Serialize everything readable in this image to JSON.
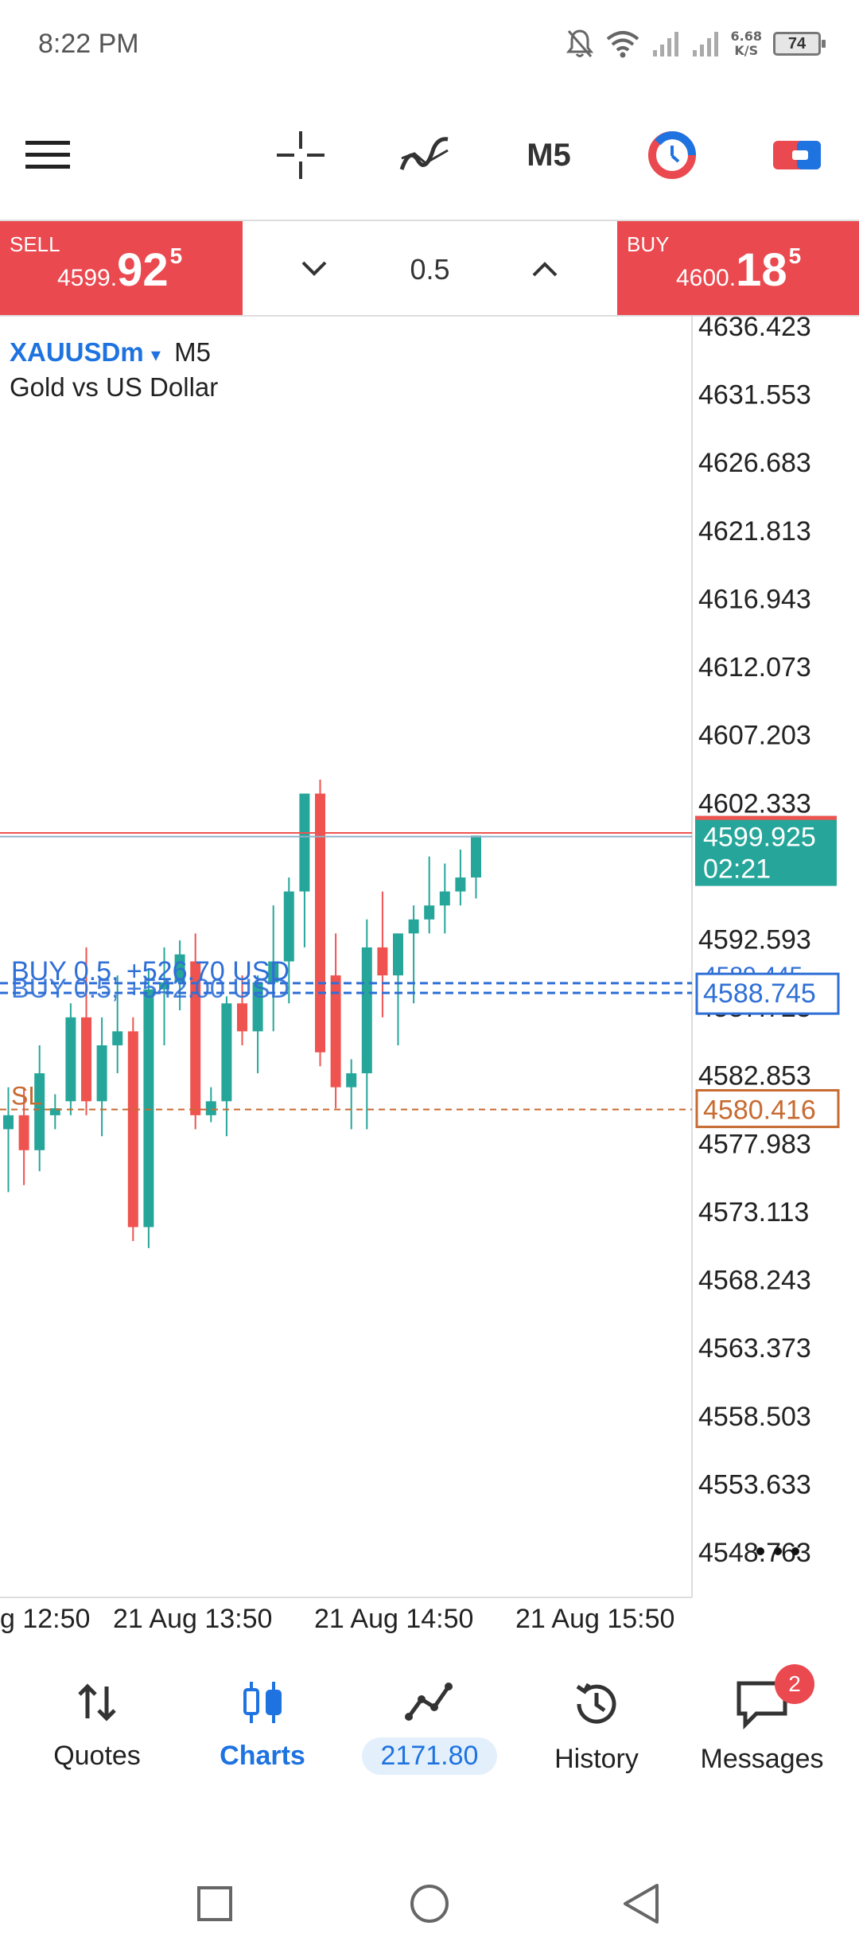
{
  "status_bar": {
    "time": "8:22 PM",
    "net_speed_value": "6.68",
    "net_speed_unit": "K/S",
    "battery": "74"
  },
  "toolbar": {
    "timeframe": "M5"
  },
  "trade": {
    "sell_label": "SELL",
    "sell_price_main": "4599.",
    "sell_price_big": "92",
    "sell_price_sup": "5",
    "buy_label": "BUY",
    "buy_price_main": "4600.",
    "buy_price_big": "18",
    "buy_price_sup": "5",
    "volume": "0.5"
  },
  "chart": {
    "symbol": "XAUUSDm",
    "dropdown_glyph": "▾",
    "timeframe": "M5",
    "description": "Gold vs US Dollar",
    "price_axis": [
      "4636.423",
      "4631.553",
      "4626.683",
      "4621.813",
      "4616.943",
      "4612.073",
      "4607.203",
      "4602.333",
      "4597.463",
      "4592.593",
      "4587.723",
      "4582.853",
      "4577.983",
      "4573.113",
      "4568.243",
      "4563.373",
      "4558.503",
      "4553.633",
      "4548.763"
    ],
    "time_axis": [
      "g 12:50",
      "21 Aug 13:50",
      "21 Aug 14:50",
      "21 Aug 15:50"
    ],
    "current_price": "4599.925",
    "countdown": "02:21",
    "position_text_1": "BUY 0.5, +526.70 USD",
    "position_text_2": "BUY 0.5, +542.00 USD",
    "position_tag": "4588.745",
    "position_tag_behind": "4589.445",
    "sl_label": "SL",
    "sl_tag": "4580.416"
  },
  "chart_data": {
    "type": "candlestick",
    "y_range": [
      4546.0,
      4638.0
    ],
    "bull_color": "#26a69a",
    "bear_color": "#ef5350",
    "candles": [
      {
        "o": 4579.0,
        "h": 4582.0,
        "l": 4574.5,
        "c": 4580.0
      },
      {
        "o": 4580.0,
        "h": 4582.0,
        "l": 4575.0,
        "c": 4577.5
      },
      {
        "o": 4577.5,
        "h": 4585.0,
        "l": 4576.0,
        "c": 4583.0
      },
      {
        "o": 4580.0,
        "h": 4581.5,
        "l": 4579.0,
        "c": 4580.5
      },
      {
        "o": 4581.0,
        "h": 4588.0,
        "l": 4580.0,
        "c": 4587.0
      },
      {
        "o": 4587.0,
        "h": 4592.0,
        "l": 4580.0,
        "c": 4581.0
      },
      {
        "o": 4581.0,
        "h": 4587.0,
        "l": 4578.5,
        "c": 4585.0
      },
      {
        "o": 4585.0,
        "h": 4590.0,
        "l": 4583.0,
        "c": 4586.0
      },
      {
        "o": 4586.0,
        "h": 4587.0,
        "l": 4571.0,
        "c": 4572.0
      },
      {
        "o": 4572.0,
        "h": 4590.5,
        "l": 4570.5,
        "c": 4589.0
      },
      {
        "o": 4589.0,
        "h": 4592.0,
        "l": 4585.0,
        "c": 4589.5
      },
      {
        "o": 4589.5,
        "h": 4592.5,
        "l": 4587.5,
        "c": 4591.5
      },
      {
        "o": 4591.0,
        "h": 4593.0,
        "l": 4579.0,
        "c": 4580.0
      },
      {
        "o": 4580.0,
        "h": 4582.0,
        "l": 4579.5,
        "c": 4581.0
      },
      {
        "o": 4581.0,
        "h": 4588.5,
        "l": 4578.5,
        "c": 4588.0
      },
      {
        "o": 4588.0,
        "h": 4590.0,
        "l": 4585.0,
        "c": 4586.0
      },
      {
        "o": 4586.0,
        "h": 4590.0,
        "l": 4583.0,
        "c": 4589.5
      },
      {
        "o": 4589.5,
        "h": 4595.0,
        "l": 4586.0,
        "c": 4591.0
      },
      {
        "o": 4591.0,
        "h": 4597.0,
        "l": 4588.0,
        "c": 4596.0
      },
      {
        "o": 4596.0,
        "h": 4603.0,
        "l": 4592.0,
        "c": 4603.0
      },
      {
        "o": 4603.0,
        "h": 4604.0,
        "l": 4583.5,
        "c": 4584.5
      },
      {
        "o": 4590.0,
        "h": 4593.0,
        "l": 4580.5,
        "c": 4582.0
      },
      {
        "o": 4582.0,
        "h": 4584.0,
        "l": 4579.0,
        "c": 4583.0
      },
      {
        "o": 4583.0,
        "h": 4594.0,
        "l": 4579.0,
        "c": 4592.0
      },
      {
        "o": 4592.0,
        "h": 4596.0,
        "l": 4587.0,
        "c": 4590.0
      },
      {
        "o": 4590.0,
        "h": 4593.0,
        "l": 4585.0,
        "c": 4593.0
      },
      {
        "o": 4593.0,
        "h": 4595.0,
        "l": 4588.0,
        "c": 4594.0
      },
      {
        "o": 4594.0,
        "h": 4598.5,
        "l": 4593.0,
        "c": 4595.0
      },
      {
        "o": 4595.0,
        "h": 4598.0,
        "l": 4593.0,
        "c": 4596.0
      },
      {
        "o": 4596.0,
        "h": 4599.0,
        "l": 4595.0,
        "c": 4597.0
      },
      {
        "o": 4597.0,
        "h": 4600.0,
        "l": 4595.5,
        "c": 4600.0
      }
    ],
    "lines": {
      "bid": 4599.925,
      "ask": 4600.185,
      "position_1": 4589.445,
      "position_2": 4588.745,
      "stop_loss": 4580.416
    }
  },
  "nav": {
    "quotes": "Quotes",
    "charts": "Charts",
    "balance": "2171.80",
    "history": "History",
    "messages": "Messages",
    "messages_badge": "2"
  }
}
